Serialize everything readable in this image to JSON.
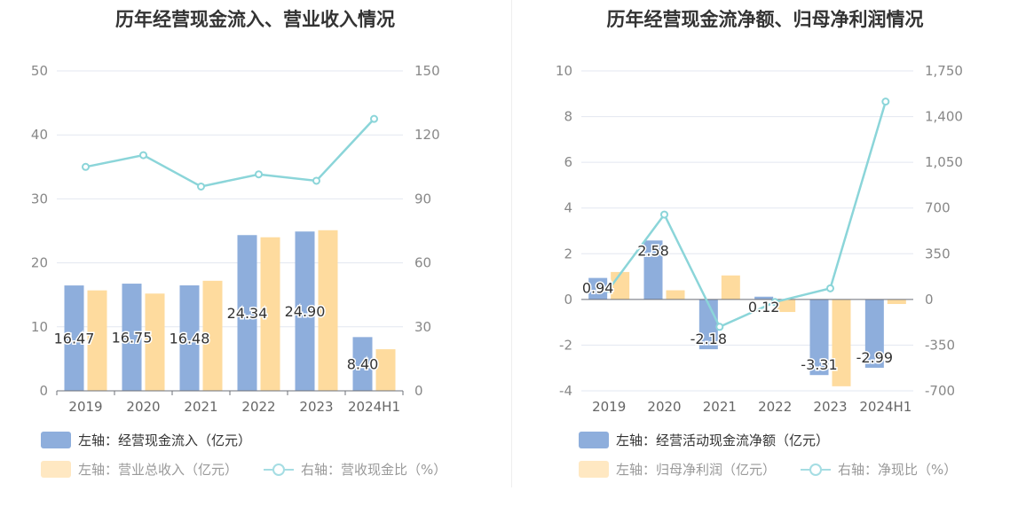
{
  "chart_data": [
    {
      "type": "bar",
      "title": "历年经营现金流入、营业收入情况",
      "categories": [
        "2019",
        "2020",
        "2021",
        "2022",
        "2023",
        "2024H1"
      ],
      "y_left": {
        "min": 0,
        "max": 50,
        "ticks": [
          "0",
          "10",
          "20",
          "30",
          "40",
          "50"
        ]
      },
      "y_right": {
        "min": 0,
        "max": 150,
        "ticks": [
          "0",
          "30",
          "60",
          "90",
          "120",
          "150"
        ]
      },
      "series": [
        {
          "name": "左轴：经营现金流入（亿元）",
          "kind": "bar",
          "axis": "left",
          "color": "#8eaedc",
          "values": [
            16.47,
            16.75,
            16.48,
            24.34,
            24.9,
            8.4
          ],
          "labels": [
            "16.47",
            "16.75",
            "16.48",
            "24.34",
            "24.90",
            "8.40"
          ]
        },
        {
          "name": "左轴：营业总收入（亿元）",
          "kind": "bar",
          "axis": "left",
          "color": "#fedb9e",
          "values": [
            15.7,
            15.2,
            17.2,
            24.0,
            25.1,
            6.5
          ]
        },
        {
          "name": "右轴：营收现金比（%）",
          "kind": "line",
          "axis": "right",
          "color": "#8bd5d9",
          "values": [
            105,
            110.5,
            95.8,
            101.5,
            98.5,
            127.5
          ]
        }
      ],
      "grid": true,
      "legend_position": "bottom-left"
    },
    {
      "type": "bar",
      "title": "历年经营现金流净额、归母净利润情况",
      "categories": [
        "2019",
        "2020",
        "2021",
        "2022",
        "2023",
        "2024H1"
      ],
      "y_left": {
        "min": -4,
        "max": 10,
        "ticks": [
          "-4",
          "-2",
          "0",
          "2",
          "4",
          "6",
          "8",
          "10"
        ]
      },
      "y_right": {
        "min": -700,
        "max": 1750,
        "ticks": [
          "-700",
          "-350",
          "0",
          "350",
          "700",
          "1,050",
          "1,400",
          "1,750"
        ]
      },
      "series": [
        {
          "name": "左轴：经营活动现金流净额（亿元）",
          "kind": "bar",
          "axis": "left",
          "color": "#8eaedc",
          "values": [
            0.94,
            2.58,
            -2.18,
            0.12,
            -3.31,
            -2.99
          ],
          "labels": [
            "0.94",
            "2.58",
            "-2.18",
            "0.12",
            "-3.31",
            "-2.99"
          ]
        },
        {
          "name": "左轴：归母净利润（亿元）",
          "kind": "bar",
          "axis": "left",
          "color": "#fedb9e",
          "values": [
            1.2,
            0.4,
            1.05,
            -0.55,
            -3.8,
            -0.2
          ]
        },
        {
          "name": "右轴：净现比（%）",
          "kind": "line",
          "axis": "right",
          "color": "#8bd5d9",
          "values": [
            80,
            650,
            -210,
            -20,
            85,
            1515
          ]
        }
      ],
      "grid": true,
      "legend_position": "bottom-left"
    }
  ]
}
